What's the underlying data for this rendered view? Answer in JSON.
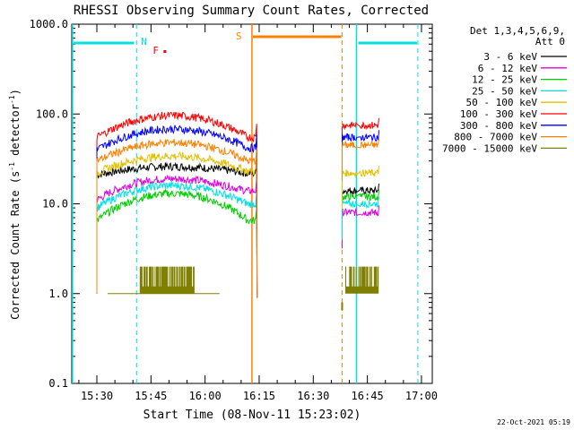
{
  "chart_data": {
    "type": "line",
    "title": "RHESSI Observing Summary Count Rates, Corrected",
    "xlabel": "Start Time (08-Nov-11 15:23:02)",
    "ylabel": "Corrected Count Rate (s⁻¹ detector⁻¹)",
    "ylabel_main": "Corrected Count Rate (s",
    "ylabel_exp": "-1",
    "ylabel_mid": " detector",
    "ylabel_end": ")",
    "yscale": "log",
    "ylim": [
      0.1,
      1000
    ],
    "xlim": [
      "15:23:02",
      "17:03:00"
    ],
    "xticks": [
      "15:30",
      "15:45",
      "16:00",
      "16:15",
      "16:30",
      "16:45",
      "17:00"
    ],
    "yticks": [
      "0.1",
      "1.0",
      "10.0",
      "100.0",
      "1000.0"
    ],
    "grid": false,
    "legend_header": [
      "Det 1,3,4,5,6,9,",
      "Att 0"
    ],
    "legend_position": "right",
    "footer": "22-Oct-2021 05:19",
    "markers": [
      {
        "label": "N",
        "time": "15:41",
        "color": "#00e0e0"
      },
      {
        "label": "F",
        "time": "15:45",
        "color": "#ff0000"
      },
      {
        "label": "S",
        "time": "16:12",
        "color": "#ff8000"
      }
    ],
    "night_lines": [
      "15:23",
      "15:41",
      "16:42",
      "16:59"
    ],
    "saa_lines": [
      "16:13",
      "16:38"
    ],
    "data_gap": [
      "16:14",
      "16:37"
    ],
    "series": [
      {
        "name": "3 - 6 keV",
        "color": "#000000",
        "seg1": {
          "start": 21,
          "end": 22,
          "peak": 26
        },
        "seg2": {
          "end": 14
        }
      },
      {
        "name": "6 - 12 keV",
        "color": "#e000e0",
        "seg1": {
          "start": 11,
          "end": 14,
          "peak": 19
        },
        "seg2": {
          "end": 8
        }
      },
      {
        "name": "12 - 25 keV",
        "color": "#00cc00",
        "seg1": {
          "start": 6.5,
          "end": 6.5,
          "peak": 13
        },
        "seg2": {
          "end": 12
        }
      },
      {
        "name": "25 - 50 keV",
        "color": "#00e0e0",
        "seg1": {
          "start": 9,
          "end": 10,
          "peak": 16
        },
        "seg2": {
          "end": 10
        }
      },
      {
        "name": "50 - 100 keV",
        "color": "#e0c000",
        "seg1": {
          "start": 22,
          "end": 23,
          "peak": 34
        },
        "seg2": {
          "end": 22
        }
      },
      {
        "name": "100 - 300 keV",
        "color": "#ff0000",
        "seg1": {
          "start": 55,
          "end": 55,
          "peak": 96
        },
        "seg2": {
          "end": 75
        }
      },
      {
        "name": "300 - 800 keV",
        "color": "#0000ff",
        "seg1": {
          "start": 40,
          "end": 42,
          "peak": 68
        },
        "seg2": {
          "end": 55
        }
      },
      {
        "name": "800 - 7000 keV",
        "color": "#ff8000",
        "seg1": {
          "start": 30,
          "end": 30,
          "peak": 48
        },
        "seg2": {
          "end": 45
        }
      },
      {
        "name": "7000 - 15000 keV",
        "color": "#808000",
        "seg1": {
          "low": 1,
          "high": 2
        },
        "seg2": {
          "low": 1,
          "high": 2
        }
      }
    ]
  }
}
